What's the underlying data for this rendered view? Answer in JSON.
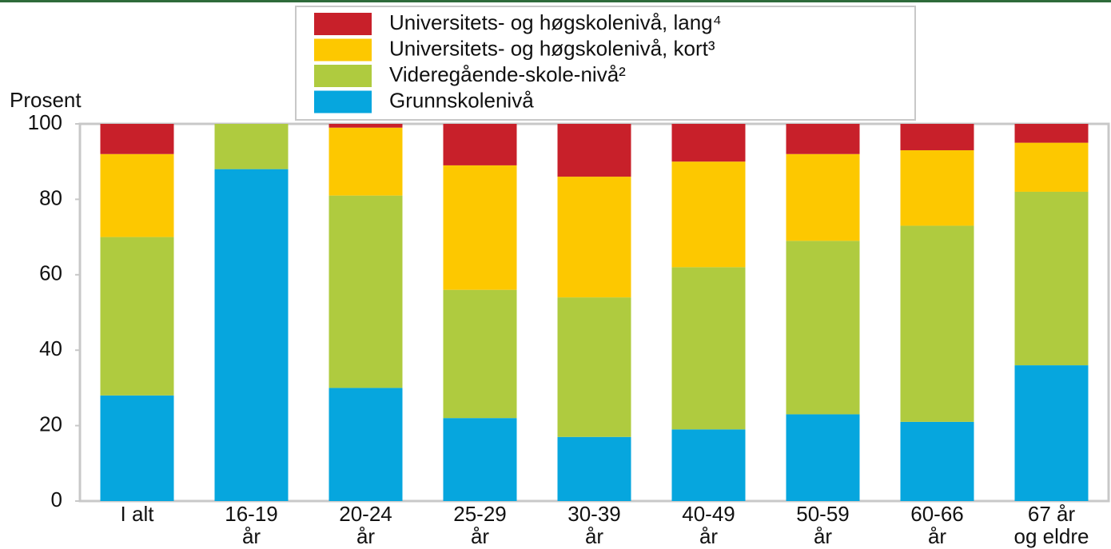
{
  "chart_data": {
    "type": "stacked_bar",
    "y_label": "Prosent",
    "categories": [
      [
        "I alt"
      ],
      [
        "16-19",
        "år"
      ],
      [
        "20-24",
        "år"
      ],
      [
        "25-29",
        "år"
      ],
      [
        "30-39",
        "år"
      ],
      [
        "40-49",
        "år"
      ],
      [
        "50-59",
        "år"
      ],
      [
        "60-66",
        "år"
      ],
      [
        "67 år",
        "og eldre"
      ]
    ],
    "series": [
      {
        "name": "Grunnskolenivå",
        "color": "#06a6de",
        "values": [
          28,
          88,
          30,
          22,
          17,
          19,
          23,
          21,
          36
        ]
      },
      {
        "name": "Videregående-skole-nivå²",
        "color": "#afcb3f",
        "values": [
          42,
          12,
          51,
          34,
          37,
          43,
          46,
          52,
          46
        ]
      },
      {
        "name": "Universitets- og høgskolenivå, kort³",
        "color": "#fdc800",
        "values": [
          22,
          0,
          18,
          33,
          32,
          28,
          23,
          20,
          13
        ]
      },
      {
        "name": "Universitets- og høgskolenivå, lang⁴",
        "color": "#c8202a",
        "values": [
          8,
          0,
          1,
          11,
          14,
          10,
          8,
          7,
          5
        ]
      }
    ],
    "ylim": [
      0,
      100
    ],
    "yticks": [
      0,
      20,
      40,
      60,
      80,
      100
    ],
    "grid": false
  }
}
